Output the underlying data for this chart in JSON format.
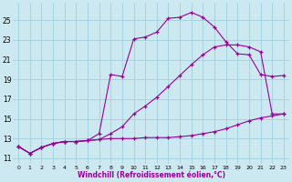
{
  "background_color": "#cce8f0",
  "line_color": "#990099",
  "xlabel": "Windchill (Refroidissement éolien,°C)",
  "x_ticks": [
    0,
    1,
    2,
    3,
    4,
    5,
    6,
    7,
    8,
    9,
    10,
    11,
    12,
    13,
    14,
    15,
    16,
    17,
    18,
    19,
    20,
    21,
    22,
    23
  ],
  "y_ticks": [
    11,
    13,
    15,
    17,
    19,
    21,
    23,
    25
  ],
  "ylim": [
    10.4,
    26.8
  ],
  "xlim": [
    -0.5,
    23.5
  ],
  "series1": {
    "x": [
      0,
      1,
      2,
      3,
      4,
      5,
      6,
      7,
      8,
      9,
      10,
      11,
      12,
      13,
      14,
      15,
      16,
      17,
      18,
      19,
      20,
      21,
      22,
      23
    ],
    "y": [
      12.2,
      11.5,
      12.1,
      12.5,
      12.7,
      12.7,
      12.8,
      12.9,
      13.0,
      13.0,
      13.0,
      13.1,
      13.1,
      13.1,
      13.2,
      13.3,
      13.5,
      13.7,
      14.0,
      14.4,
      14.8,
      15.1,
      15.3,
      15.5
    ]
  },
  "series2": {
    "x": [
      0,
      1,
      2,
      3,
      4,
      5,
      6,
      7,
      8,
      9,
      10,
      11,
      12,
      13,
      14,
      15,
      16,
      17,
      18,
      19,
      20,
      21,
      22,
      23
    ],
    "y": [
      12.2,
      11.5,
      12.1,
      12.5,
      12.7,
      12.7,
      12.8,
      12.9,
      13.5,
      14.2,
      15.5,
      16.3,
      17.2,
      18.3,
      19.4,
      20.5,
      21.5,
      22.3,
      22.5,
      22.5,
      22.3,
      21.8,
      15.5,
      15.5
    ]
  },
  "series3": {
    "x": [
      0,
      1,
      2,
      3,
      4,
      5,
      6,
      7,
      8,
      9,
      10,
      11,
      12,
      13,
      14,
      15,
      16,
      17,
      18,
      19,
      20,
      21,
      22,
      23
    ],
    "y": [
      12.2,
      11.5,
      12.1,
      12.5,
      12.7,
      12.7,
      12.8,
      13.5,
      19.5,
      19.3,
      23.1,
      23.3,
      23.8,
      25.2,
      25.3,
      25.8,
      25.3,
      24.3,
      22.8,
      21.6,
      21.5,
      19.5,
      19.3,
      19.4
    ]
  }
}
